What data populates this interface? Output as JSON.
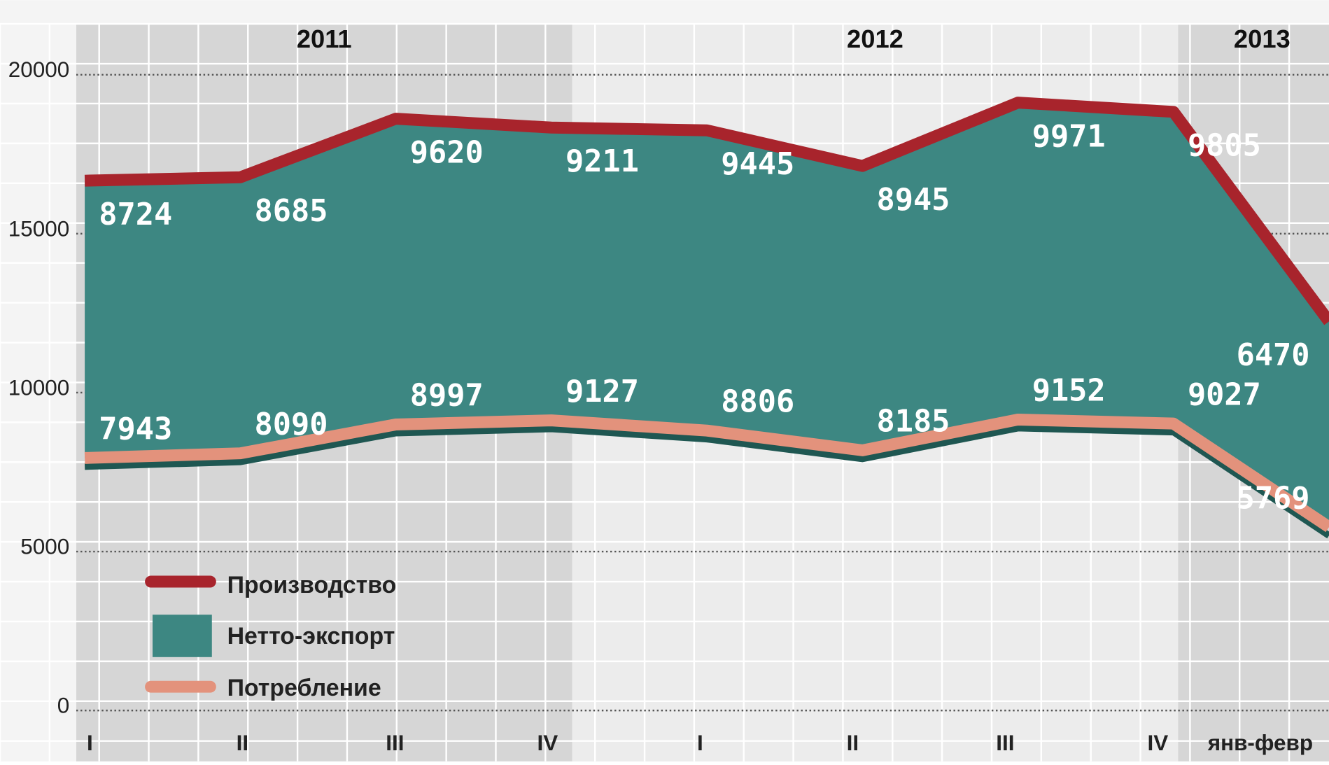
{
  "chart_data": {
    "type": "stacked_area",
    "categories": [
      "I",
      "II",
      "III",
      "IV",
      "I",
      "II",
      "III",
      "IV",
      "янв-февр"
    ],
    "groups": [
      {
        "label": "2011",
        "from": 0,
        "to": 3
      },
      {
        "label": "2012",
        "from": 4,
        "to": 7
      },
      {
        "label": "2013",
        "from": 8,
        "to": 8
      }
    ],
    "series": [
      {
        "name": "Потребление",
        "color": "#e3927c",
        "values": [
          7943,
          8090,
          8997,
          9127,
          8806,
          8185,
          9152,
          9027,
          5769
        ]
      },
      {
        "name": "Нетто-экспорт",
        "color": "#3d8782",
        "values": [
          8724,
          8685,
          9620,
          9211,
          9445,
          8945,
          9971,
          9805,
          6470
        ]
      }
    ],
    "top_line": {
      "name": "Производство",
      "color": "#a8242c"
    },
    "ylim": [
      0,
      20000
    ],
    "yticks": [
      0,
      5000,
      10000,
      15000,
      20000
    ],
    "grid": true
  }
}
